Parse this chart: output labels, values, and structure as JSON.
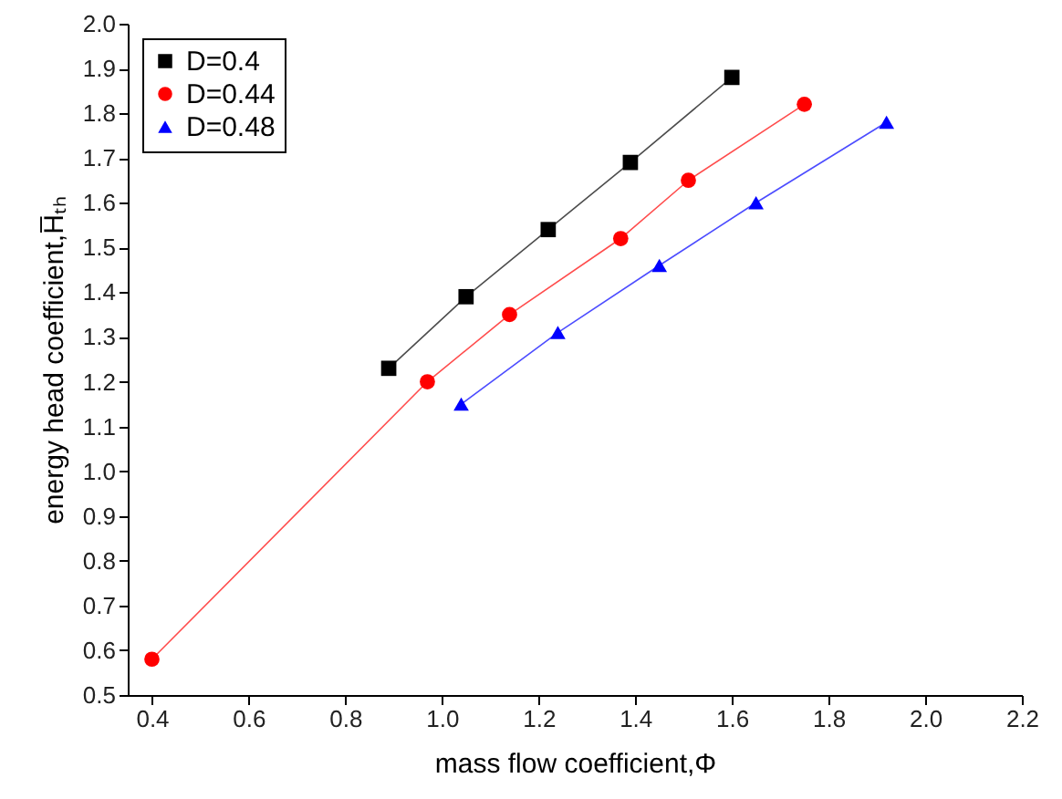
{
  "chart_data": {
    "type": "line",
    "xlabel": "mass flow coefficient,Φ",
    "ylabel": "energy head coefficient,H̅ₜₕ",
    "xlim": [
      0.35,
      2.2
    ],
    "ylim": [
      0.5,
      2.0
    ],
    "xticks": [
      0.4,
      0.6,
      0.8,
      {
        "value": 1.0,
        "label": "1.0"
      },
      1.2,
      1.4,
      1.6,
      1.8,
      {
        "value": 2.0,
        "label": "2.0"
      },
      2.2
    ],
    "yticks": [
      0.5,
      0.6,
      0.7,
      0.8,
      0.9,
      {
        "value": 1.0,
        "label": "1.0"
      },
      1.1,
      1.2,
      1.3,
      1.4,
      1.5,
      1.6,
      1.7,
      1.8,
      1.9,
      {
        "value": 2.0,
        "label": "2.0"
      }
    ],
    "grid": false,
    "legend": "top left",
    "line_style": "solid",
    "series": [
      {
        "name": "D=0.4",
        "color": "#000000",
        "marker": "square",
        "x": [
          0.89,
          1.05,
          1.22,
          1.39,
          1.6
        ],
        "values": [
          1.23,
          1.39,
          1.54,
          1.69,
          1.88
        ]
      },
      {
        "name": "D=0.44",
        "color": "#ff0000",
        "marker": "circle",
        "x": [
          0.4,
          0.97,
          1.14,
          1.37,
          1.51,
          1.75
        ],
        "values": [
          0.58,
          1.2,
          1.35,
          1.52,
          1.65,
          1.82
        ]
      },
      {
        "name": "D=0.48",
        "color": "#0000ff",
        "marker": "triangle",
        "x": [
          1.04,
          1.24,
          1.45,
          1.65,
          1.92
        ],
        "values": [
          1.15,
          1.31,
          1.46,
          1.6,
          1.78
        ]
      }
    ]
  }
}
